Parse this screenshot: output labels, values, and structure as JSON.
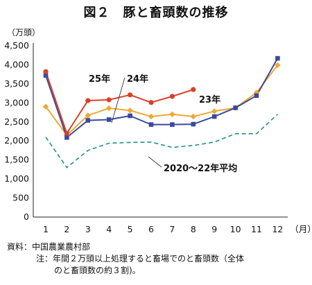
{
  "chart_data": {
    "type": "line",
    "title": "図２　豚と畜頭数の推移",
    "unit_label": "（万頭）",
    "x_unit_label": "（月）",
    "categories": [
      "1",
      "2",
      "3",
      "4",
      "5",
      "6",
      "7",
      "8",
      "9",
      "10",
      "11",
      "12"
    ],
    "ylim": [
      0,
      4500
    ],
    "yticks": [
      0,
      500,
      1000,
      1500,
      2000,
      2500,
      3000,
      3500,
      4000,
      4500
    ],
    "ytick_labels": [
      "0",
      "500",
      "1,000",
      "1,500",
      "2,000",
      "2,500",
      "3,000",
      "3,500",
      "4,000",
      "4,500"
    ],
    "grid": false,
    "legend": "none (inline labels)",
    "series": [
      {
        "name": "25年",
        "color": "#d9402b",
        "marker": "circle",
        "dash": false,
        "values": [
          3820,
          2200,
          3060,
          3080,
          3210,
          3010,
          3170,
          3350,
          null,
          null,
          null,
          null
        ]
      },
      {
        "name": "24年",
        "color": "#3a4a9c",
        "marker": "square",
        "dash": false,
        "values": [
          3720,
          2090,
          2540,
          2560,
          2660,
          2430,
          2430,
          2440,
          2640,
          2870,
          3190,
          4170
        ]
      },
      {
        "name": "23年",
        "color": "#f0a832",
        "marker": "diamond",
        "dash": false,
        "values": [
          2900,
          2150,
          2670,
          2860,
          2800,
          2640,
          2700,
          2640,
          2780,
          2870,
          3270,
          3990
        ]
      },
      {
        "name": "2020～22年平均",
        "color": "#20908f",
        "marker": "none",
        "dash": true,
        "values": [
          2100,
          1300,
          1750,
          1940,
          1960,
          1970,
          1830,
          1880,
          1970,
          2190,
          2190,
          2700
        ]
      }
    ]
  },
  "notes": {
    "source": "資料：中国農業農村部",
    "note_line1": "注：年間２万頭以上処理すると畜場でのと畜頭数（全体",
    "note_line2": "のと畜頭数の約３割)。"
  }
}
